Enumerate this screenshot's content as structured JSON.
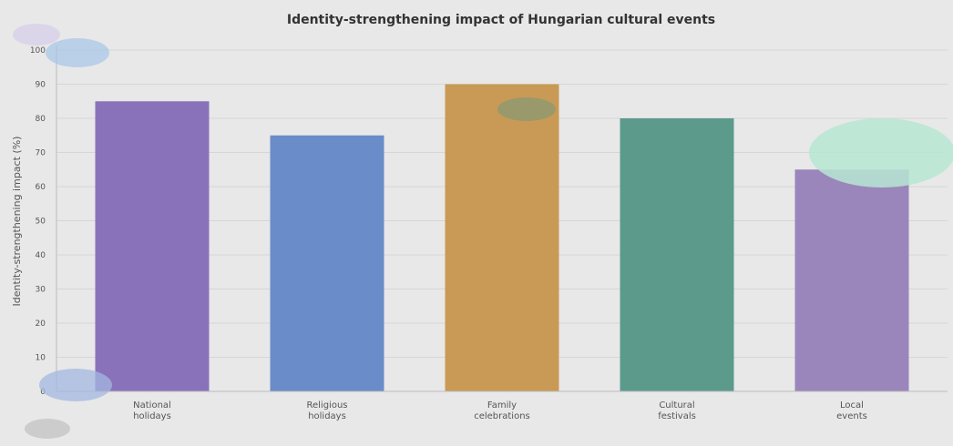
{
  "chart_data": {
    "type": "bar",
    "title": "Identity-strengthening impact of Hungarian cultural events",
    "ylabel": "Identity-strengthening impact (%)",
    "xlabel": "",
    "categories": [
      [
        "National",
        "holidays"
      ],
      [
        "Religious",
        "holidays"
      ],
      [
        "Family",
        "celebrations"
      ],
      [
        "Cultural",
        "festivals"
      ],
      [
        "Local",
        "events"
      ]
    ],
    "values": [
      85,
      75,
      90,
      80,
      65
    ],
    "colors": [
      "#8a72bb",
      "#6a8cc8",
      "#c99a55",
      "#5c9a8c",
      "#9a86bb"
    ],
    "ylim": [
      0,
      100
    ],
    "yticks": [
      0,
      10,
      20,
      30,
      40,
      50,
      60,
      70,
      80,
      90,
      100
    ],
    "grid": true,
    "background": "#e8e8e8"
  }
}
